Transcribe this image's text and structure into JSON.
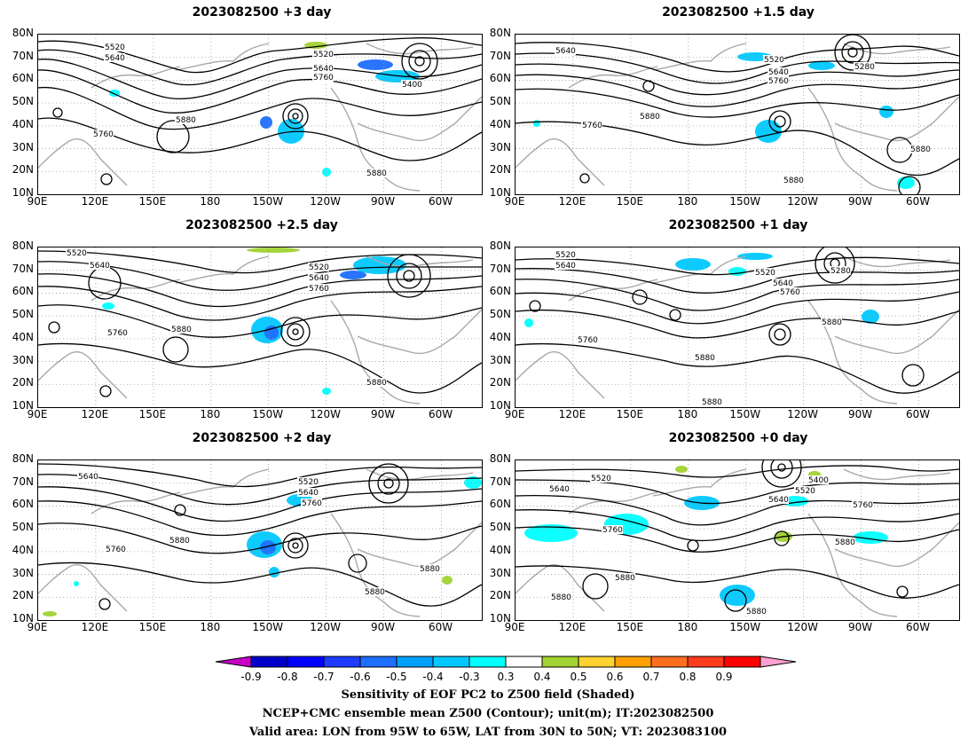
{
  "panels": [
    {
      "title": "2023082500 +3 day"
    },
    {
      "title": "2023082500 +1.5 day"
    },
    {
      "title": "2023082500 +2.5 day"
    },
    {
      "title": "2023082500 +1 day"
    },
    {
      "title": "2023082500 +2 day"
    },
    {
      "title": "2023082500 +0 day"
    }
  ],
  "axes": {
    "lat_labels": [
      "80N",
      "70N",
      "60N",
      "50N",
      "40N",
      "30N",
      "20N",
      "10N"
    ],
    "lon_labels": [
      "90E",
      "120E",
      "150E",
      "180",
      "150W",
      "120W",
      "90W",
      "60W"
    ]
  },
  "contour_labels": [
    [
      "5520",
      "5640",
      "5520",
      "5640",
      "5760",
      "5400",
      "5880",
      "5760",
      "5880"
    ],
    [
      "5640",
      "5520",
      "5640",
      "5760",
      "5280",
      "5760",
      "5880",
      "5880",
      "5880"
    ],
    [
      "5520",
      "5640",
      "5520",
      "5640",
      "5760",
      "5760",
      "5880",
      "5880"
    ],
    [
      "5520",
      "5640",
      "5520",
      "5640",
      "5760",
      "5280",
      "5760",
      "5880",
      "5880",
      "5880"
    ],
    [
      "5640",
      "5520",
      "5640",
      "5760",
      "5880",
      "5760",
      "5880",
      "5880"
    ],
    [
      "5520",
      "5640",
      "5400",
      "5520",
      "5640",
      "5760",
      "5760",
      "5880",
      "5880",
      "5880",
      "5880"
    ]
  ],
  "colorbar": {
    "labels": [
      "-0.9",
      "-0.8",
      "-0.7",
      "-0.6",
      "-0.5",
      "-0.4",
      "-0.3",
      "0.3",
      "0.4",
      "0.5",
      "0.6",
      "0.7",
      "0.8",
      "0.9"
    ],
    "colors": [
      "#0000c8",
      "#0000ff",
      "#1e3cff",
      "#1e6eff",
      "#00a0ff",
      "#00c8ff",
      "#00ffff",
      "#ffffff",
      "#a0d232",
      "#ffd232",
      "#ffa000",
      "#ff6e1e",
      "#ff3c1e",
      "#ff0000"
    ],
    "end_left": "#c800c8",
    "end_right": "#ffa0d2"
  },
  "caption": {
    "line1": "Sensitivity of EOF PC2 to Z500 field (Shaded)",
    "line2": "NCEP+CMC ensemble mean Z500 (Contour); unit(m); IT:2023082500",
    "line3": "Valid area: LON from 95W to 65W, LAT from 30N to 50N; VT: 2023083100"
  }
}
